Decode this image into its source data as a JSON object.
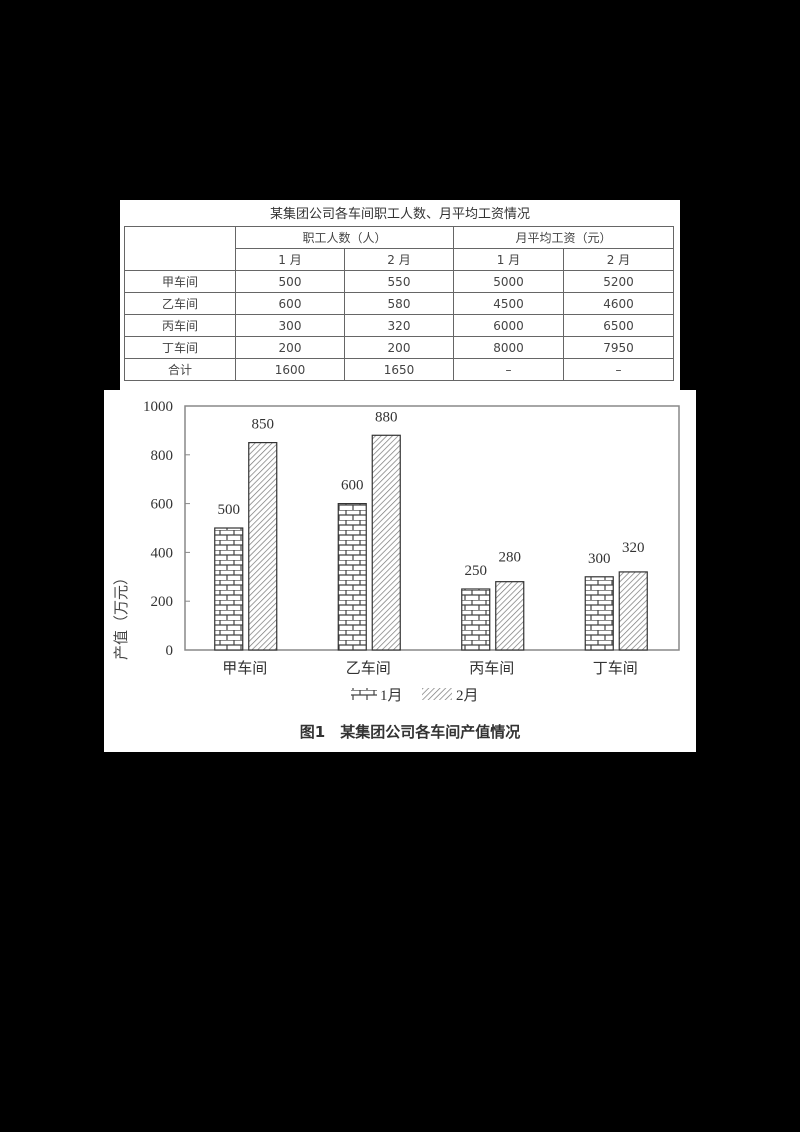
{
  "table": {
    "title": "某集团公司各车间职工人数、月平均工资情况",
    "group_headers": [
      "职工人数（人）",
      "月平均工资（元）"
    ],
    "sub_headers": [
      "1 月",
      "2 月",
      "1 月",
      "2 月"
    ],
    "rows": [
      {
        "label": "甲车间",
        "values": [
          "500",
          "550",
          "5000",
          "5200"
        ]
      },
      {
        "label": "乙车间",
        "values": [
          "600",
          "580",
          "4500",
          "4600"
        ]
      },
      {
        "label": "丙车间",
        "values": [
          "300",
          "320",
          "6000",
          "6500"
        ]
      },
      {
        "label": "丁车间",
        "values": [
          "200",
          "200",
          "8000",
          "7950"
        ]
      },
      {
        "label": "合计",
        "values": [
          "1600",
          "1650",
          "–",
          "–"
        ]
      }
    ]
  },
  "chart": {
    "caption": "图1　某集团公司各车间产值情况",
    "ylabel": "产值（万元）",
    "yticks": [
      "0",
      "200",
      "400",
      "600",
      "800",
      "1000"
    ],
    "legend": [
      "1月",
      "2月"
    ]
  },
  "chart_data": {
    "type": "bar",
    "title": "图1 某集团公司各车间产值情况",
    "categories": [
      "甲车间",
      "乙车间",
      "丙车间",
      "丁车间"
    ],
    "series": [
      {
        "name": "1月",
        "values": [
          500,
          600,
          250,
          300
        ],
        "pattern": "brick"
      },
      {
        "name": "2月",
        "values": [
          850,
          880,
          280,
          320
        ],
        "pattern": "diagonal-hatch"
      }
    ],
    "xlabel": "",
    "ylabel": "产值（万元）",
    "ylim": [
      0,
      1000
    ],
    "yticks": [
      0,
      200,
      400,
      600,
      800,
      1000
    ],
    "data_labels": true,
    "grid": false,
    "legend_position": "bottom"
  }
}
